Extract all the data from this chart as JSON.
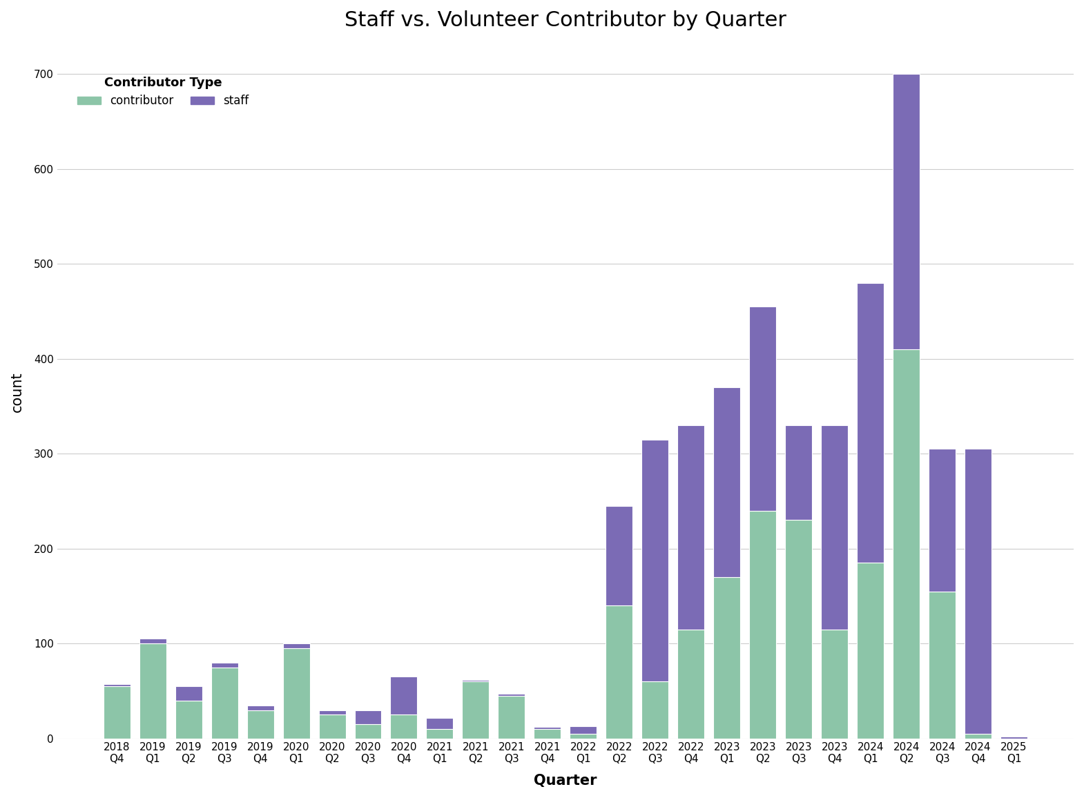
{
  "title": "Staff vs. Volunteer Contributor by Quarter",
  "xlabel": "Quarter",
  "ylabel": "count",
  "legend_title": "Contributor Type",
  "legend_labels": [
    "contributor",
    "staff"
  ],
  "contributor_color": "#8CC5A8",
  "staff_color": "#7B6BB5",
  "background_color": "#ffffff",
  "quarters_line1": [
    "2018",
    "2019",
    "2019",
    "2019",
    "2019",
    "2020",
    "2020",
    "2020",
    "2020",
    "2021",
    "2021",
    "2021",
    "2021",
    "2022",
    "2022",
    "2022",
    "2022",
    "2023",
    "2023",
    "2023",
    "2023",
    "2024",
    "2024",
    "2024",
    "2024",
    "2025"
  ],
  "quarters_line2": [
    "Q4",
    "Q1",
    "Q2",
    "Q3",
    "Q4",
    "Q1",
    "Q2",
    "Q3",
    "Q4",
    "Q1",
    "Q2",
    "Q3",
    "Q4",
    "Q1",
    "Q2",
    "Q3",
    "Q4",
    "Q1",
    "Q2",
    "Q3",
    "Q4",
    "Q1",
    "Q2",
    "Q3",
    "Q4",
    "Q1"
  ],
  "contributor_values": [
    55,
    100,
    40,
    75,
    30,
    95,
    25,
    15,
    25,
    10,
    60,
    45,
    10,
    5,
    140,
    60,
    115,
    170,
    240,
    230,
    115,
    185,
    410,
    155,
    5,
    0
  ],
  "staff_values": [
    2,
    5,
    15,
    5,
    5,
    5,
    5,
    15,
    40,
    12,
    2,
    2,
    2,
    8,
    105,
    255,
    215,
    200,
    215,
    100,
    215,
    295,
    290,
    150,
    300,
    2
  ],
  "ylim": [
    0,
    730
  ],
  "yticks": [
    0,
    100,
    200,
    300,
    400,
    500,
    600,
    700
  ],
  "title_fontsize": 22,
  "axis_label_fontsize": 15,
  "tick_fontsize": 11,
  "legend_title_fontsize": 13,
  "legend_fontsize": 12
}
